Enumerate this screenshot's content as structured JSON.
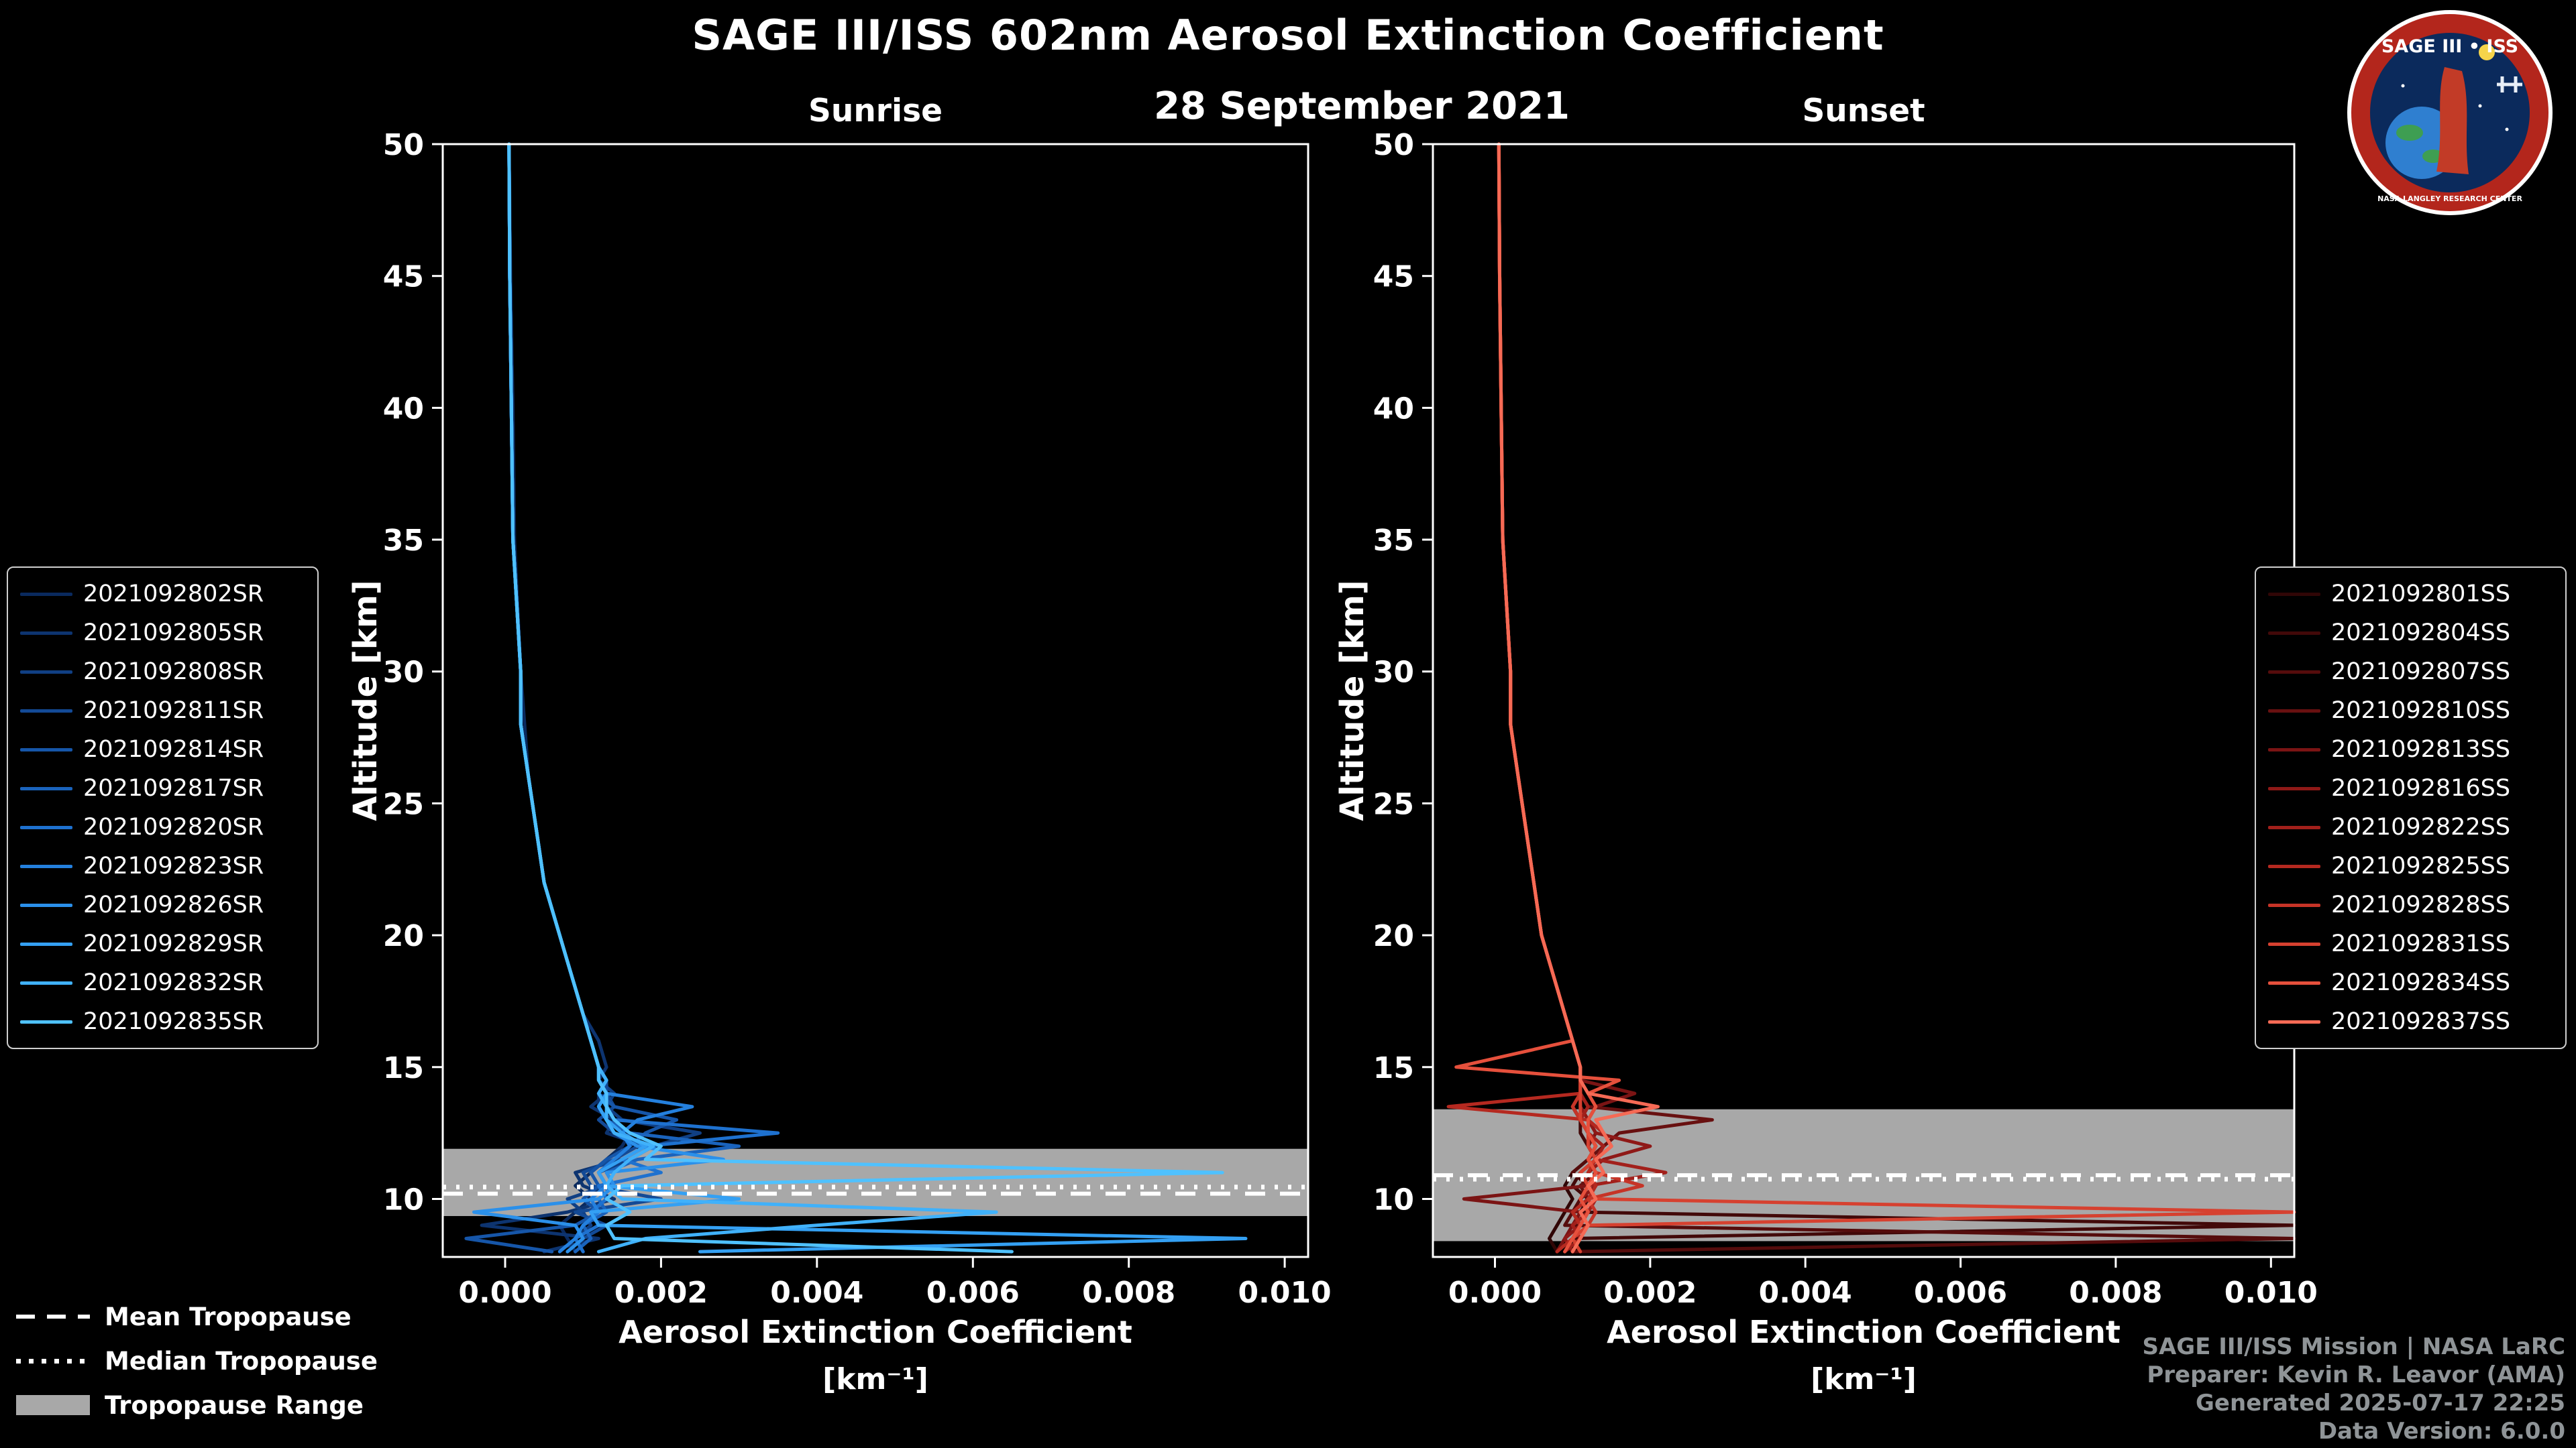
{
  "page": {
    "title": "SAGE III/ISS 602nm Aerosol Extinction Coefficient",
    "date": "28 September 2021",
    "background": "#000000"
  },
  "logo": {
    "title": "SAGE III • ISS",
    "ring_text": "NASA LANGLEY RESEARCH CENTER"
  },
  "tropopause_legend": {
    "mean": "Mean Tropopause",
    "median": "Median Tropopause",
    "range": "Tropopause Range"
  },
  "footer": {
    "lines": [
      "SAGE III/ISS Mission | NASA LaRC",
      "Preparer: Kevin R. Leavor (AMA)",
      "Generated 2025-07-17 22:25",
      "Data Version: 6.0.0"
    ]
  },
  "chart_data": [
    {
      "type": "line",
      "panel_title": "Sunrise",
      "xlabel": "Aerosol Extinction Coefficient",
      "xlabel_units": "[km⁻¹]",
      "ylabel": "Altitude [km]",
      "xlim": [
        -0.0008,
        0.0103
      ],
      "ylim": [
        7.8,
        50
      ],
      "xticks": [
        0.0,
        0.002,
        0.004,
        0.006,
        0.008,
        0.01
      ],
      "xtick_labels": [
        "0.000",
        "0.002",
        "0.004",
        "0.006",
        "0.008",
        "0.010"
      ],
      "yticks": [
        10,
        15,
        20,
        25,
        30,
        35,
        40,
        45,
        50
      ],
      "grid": false,
      "legend_position": "left",
      "tropopause": {
        "mean_km": 10.2,
        "median_km": 10.45,
        "range_km": [
          9.35,
          11.9
        ]
      },
      "altitudes": [
        8,
        8.5,
        9,
        9.5,
        10,
        10.5,
        11,
        11.5,
        12,
        12.5,
        13,
        13.5,
        14,
        14.5,
        15,
        16,
        17,
        18,
        19,
        20,
        22,
        24,
        26,
        28,
        30,
        35,
        40,
        45,
        50
      ],
      "series": [
        {
          "name": "2021092802SR",
          "color": "#0a2a5e",
          "values": [
            0.0009,
            0.0008,
            0.0007,
            0.0009,
            0.0011,
            0.0009,
            0.0011,
            0.0013,
            0.0015,
            0.0016,
            0.0013,
            0.0012,
            0.0012,
            0.0013,
            0.0012,
            0.0011,
            0.001,
            0.0009,
            0.0008,
            0.0007,
            0.0005,
            0.0004,
            0.0003,
            0.00025,
            0.0002,
            0.00012,
            0.0001,
            7e-05,
            5e-05
          ]
        },
        {
          "name": "2021092805SR",
          "color": "#0d3470",
          "values": [
            0.0005,
            0.0012,
            -0.0003,
            0.0008,
            0.0014,
            0.001,
            0.0009,
            0.0015,
            0.0018,
            0.0013,
            0.0014,
            0.0011,
            0.0013,
            0.0012,
            0.0013,
            0.0012,
            0.001,
            0.0009,
            0.0008,
            0.0007,
            0.0005,
            0.0004,
            0.0003,
            0.0002,
            0.0002,
            0.0001,
            8e-05,
            6e-05,
            5e-05
          ]
        },
        {
          "name": "2021092808SR",
          "color": "#103f83",
          "values": [
            0.001,
            0.0009,
            0.0011,
            0.001,
            0.0008,
            0.0013,
            0.0012,
            0.0016,
            0.0019,
            0.0025,
            0.0015,
            0.0013,
            0.0014,
            0.0012,
            0.0012,
            0.0011,
            0.001,
            0.0009,
            0.0008,
            0.0007,
            0.0005,
            0.0004,
            0.0003,
            0.0002,
            0.0002,
            0.0001,
            8e-05,
            6e-05,
            5e-05
          ]
        },
        {
          "name": "2021092811SR",
          "color": "#134a96",
          "values": [
            0.0008,
            0.001,
            0.0013,
            0.0009,
            0.002,
            0.0011,
            0.001,
            0.0014,
            0.0017,
            0.0014,
            0.0012,
            0.0014,
            0.0013,
            0.0013,
            0.0012,
            0.0011,
            0.001,
            0.0009,
            0.0008,
            0.0007,
            0.0005,
            0.0004,
            0.0003,
            0.0002,
            0.0002,
            0.0001,
            8e-05,
            6e-05,
            5e-05
          ]
        },
        {
          "name": "2021092814SR",
          "color": "#1656a9",
          "values": [
            0.0006,
            -0.0005,
            0.0009,
            0.0012,
            0.001,
            0.0012,
            0.0011,
            0.0013,
            0.0016,
            0.0018,
            0.0022,
            0.0014,
            0.0012,
            0.0013,
            0.0012,
            0.0011,
            0.001,
            0.0009,
            0.0008,
            0.0007,
            0.0005,
            0.0004,
            0.0003,
            0.0002,
            0.0002,
            0.0001,
            8e-05,
            6e-05,
            5e-05
          ]
        },
        {
          "name": "2021092817SR",
          "color": "#1a63bc",
          "values": [
            0.0009,
            0.0011,
            0.001,
            0.0013,
            0.0012,
            0.0014,
            0.0013,
            0.0017,
            0.003,
            0.0016,
            0.0013,
            0.0012,
            0.0013,
            0.0012,
            0.0012,
            0.0011,
            0.001,
            0.0009,
            0.0008,
            0.0007,
            0.0005,
            0.0004,
            0.0003,
            0.0002,
            0.0002,
            0.0001,
            8e-05,
            6e-05,
            5e-05
          ]
        },
        {
          "name": "2021092820SR",
          "color": "#1e71cf",
          "values": [
            0.001,
            0.0009,
            0.0012,
            0.0011,
            0.0013,
            0.0012,
            0.002,
            0.0015,
            0.0018,
            0.0035,
            0.0014,
            0.0013,
            0.0012,
            0.0013,
            0.0012,
            0.0011,
            0.001,
            0.0009,
            0.0008,
            0.0007,
            0.0005,
            0.0004,
            0.0003,
            0.0002,
            0.0002,
            0.0001,
            8e-05,
            6e-05,
            5e-05
          ]
        },
        {
          "name": "2021092823SR",
          "color": "#2480de",
          "values": [
            0.0007,
            0.0009,
            0.001,
            0.0012,
            0.0011,
            0.0013,
            0.0012,
            0.0014,
            0.0016,
            0.0015,
            0.0017,
            0.0024,
            0.0013,
            0.0012,
            0.0012,
            0.0011,
            0.001,
            0.0009,
            0.0008,
            0.0007,
            0.0005,
            0.0004,
            0.0003,
            0.0002,
            0.0002,
            0.0001,
            8e-05,
            6e-05,
            5e-05
          ]
        },
        {
          "name": "2021092826SR",
          "color": "#2b90ea",
          "values": [
            0.0008,
            0.001,
            0.0009,
            -0.0004,
            0.0012,
            0.0014,
            0.0013,
            0.0028,
            0.0017,
            0.0014,
            0.0013,
            0.0012,
            0.0013,
            0.0012,
            0.0012,
            0.0011,
            0.001,
            0.0009,
            0.0008,
            0.0007,
            0.0005,
            0.0004,
            0.0003,
            0.0002,
            0.0002,
            0.0001,
            8e-05,
            6e-05,
            5e-05
          ]
        },
        {
          "name": "2021092829SR",
          "color": "#34a0f3",
          "values": [
            0.0025,
            0.0095,
            0.0012,
            0.0011,
            0.003,
            0.0013,
            0.0012,
            0.0015,
            0.0018,
            0.0015,
            0.0013,
            0.0012,
            0.0013,
            0.0012,
            0.0012,
            0.0011,
            0.001,
            0.0009,
            0.0008,
            0.0007,
            0.0005,
            0.0004,
            0.0003,
            0.0002,
            0.0002,
            0.0001,
            8e-05,
            6e-05,
            5e-05
          ]
        },
        {
          "name": "2021092832SR",
          "color": "#40b1fa",
          "values": [
            0.0012,
            0.0018,
            0.004,
            0.0063,
            0.0015,
            0.0013,
            0.0014,
            0.0016,
            0.0019,
            0.0014,
            0.0013,
            0.0013,
            0.0012,
            0.0013,
            0.0012,
            0.0011,
            0.001,
            0.0009,
            0.0008,
            0.0007,
            0.0005,
            0.0004,
            0.0003,
            0.0002,
            0.0002,
            0.0001,
            8e-05,
            6e-05,
            5e-05
          ]
        },
        {
          "name": "2021092835SR",
          "color": "#4fc1ff",
          "values": [
            0.0065,
            0.0014,
            0.0013,
            0.0016,
            0.0013,
            0.0015,
            0.0092,
            0.0018,
            0.002,
            0.0016,
            0.0014,
            0.0013,
            0.0013,
            0.0012,
            0.0012,
            0.0011,
            0.001,
            0.0009,
            0.0008,
            0.0007,
            0.0005,
            0.0004,
            0.0003,
            0.0002,
            0.0002,
            0.0001,
            8e-05,
            6e-05,
            5e-05
          ]
        }
      ]
    },
    {
      "type": "line",
      "panel_title": "Sunset",
      "xlabel": "Aerosol Extinction Coefficient",
      "xlabel_units": "[km⁻¹]",
      "ylabel": "Altitude [km]",
      "xlim": [
        -0.0008,
        0.0103
      ],
      "ylim": [
        7.8,
        50
      ],
      "xticks": [
        0.0,
        0.002,
        0.004,
        0.006,
        0.008,
        0.01
      ],
      "xtick_labels": [
        "0.000",
        "0.002",
        "0.004",
        "0.006",
        "0.008",
        "0.010"
      ],
      "yticks": [
        10,
        15,
        20,
        25,
        30,
        35,
        40,
        45,
        50
      ],
      "grid": false,
      "legend_position": "right",
      "tropopause": {
        "mean_km": 10.9,
        "median_km": 10.75,
        "range_km": [
          8.4,
          13.4
        ]
      },
      "altitudes": [
        8,
        8.5,
        9,
        9.5,
        10,
        10.5,
        11,
        11.5,
        12,
        12.5,
        13,
        13.5,
        14,
        14.5,
        15,
        16,
        17,
        18,
        19,
        20,
        22,
        24,
        26,
        28,
        30,
        35,
        40,
        45,
        50
      ],
      "series": [
        {
          "name": "2021092801SS",
          "color": "#300606",
          "values": [
            0.0008,
            0.0007,
            0.0008,
            0.0009,
            0.001,
            0.0009,
            0.001,
            0.0012,
            0.0013,
            0.0012,
            0.0011,
            0.001,
            0.0011,
            0.0011,
            0.0011,
            0.001,
            0.0009,
            0.0008,
            0.0007,
            0.0006,
            0.0005,
            0.0004,
            0.0003,
            0.0002,
            0.0002,
            0.0001,
            8e-05,
            6e-05,
            5e-05
          ]
        },
        {
          "name": "2021092804SS",
          "color": "#420909",
          "values": [
            0.0009,
            0.001,
            0.012,
            0.0011,
            0.0012,
            0.001,
            0.0011,
            0.0013,
            0.0012,
            0.0011,
            0.0011,
            0.001,
            0.0011,
            0.0011,
            0.0011,
            0.001,
            0.0009,
            0.0008,
            0.0007,
            0.0006,
            0.0005,
            0.0004,
            0.0003,
            0.0002,
            0.0002,
            0.0001,
            8e-05,
            6e-05,
            5e-05
          ]
        },
        {
          "name": "2021092807SS",
          "color": "#550c0c",
          "values": [
            0.001,
            0.013,
            0.0009,
            0.001,
            0.0011,
            0.0012,
            0.001,
            0.0012,
            0.0013,
            0.0012,
            0.0011,
            0.001,
            0.0011,
            0.0011,
            0.0011,
            0.001,
            0.0009,
            0.0008,
            0.0007,
            0.0006,
            0.0005,
            0.0004,
            0.0003,
            0.0002,
            0.0002,
            0.0001,
            8e-05,
            6e-05,
            5e-05
          ]
        },
        {
          "name": "2021092810SS",
          "color": "#681010",
          "values": [
            0.0009,
            0.001,
            0.0011,
            0.001,
            0.0012,
            0.0011,
            0.0013,
            0.0012,
            0.0014,
            0.0016,
            0.0028,
            0.0012,
            0.0011,
            0.0011,
            0.0011,
            0.001,
            0.0009,
            0.0008,
            0.0007,
            0.0006,
            0.0005,
            0.0004,
            0.0003,
            0.0002,
            0.0002,
            0.0001,
            8e-05,
            6e-05,
            5e-05
          ]
        },
        {
          "name": "2021092813SS",
          "color": "#7b1414",
          "values": [
            0.0008,
            0.0009,
            0.001,
            0.0011,
            -0.0004,
            0.0012,
            0.0011,
            0.0013,
            0.0012,
            0.0013,
            0.0012,
            0.0013,
            0.0018,
            0.0011,
            0.0011,
            0.001,
            0.0009,
            0.0008,
            0.0007,
            0.0006,
            0.0005,
            0.0004,
            0.0003,
            0.0002,
            0.0002,
            0.0001,
            8e-05,
            6e-05,
            5e-05
          ]
        },
        {
          "name": "2021092816SS",
          "color": "#8f1917",
          "values": [
            0.001,
            0.0009,
            0.0011,
            0.0012,
            0.0011,
            0.0013,
            0.0012,
            0.0014,
            0.002,
            0.0013,
            0.0012,
            0.0011,
            0.0011,
            0.0011,
            0.0011,
            0.001,
            0.0009,
            0.0008,
            0.0007,
            0.0006,
            0.0005,
            0.0004,
            0.0003,
            0.0002,
            0.0002,
            0.0001,
            8e-05,
            6e-05,
            5e-05
          ]
        },
        {
          "name": "2021092822SS",
          "color": "#a2201b",
          "values": [
            0.0009,
            0.0011,
            0.001,
            0.0012,
            0.0013,
            0.0012,
            0.0022,
            0.0013,
            0.0014,
            0.0012,
            0.0011,
            0.0012,
            0.0011,
            0.0011,
            0.0011,
            0.001,
            0.0009,
            0.0008,
            0.0007,
            0.0006,
            0.0005,
            0.0004,
            0.0003,
            0.0002,
            0.0002,
            0.0001,
            8e-05,
            6e-05,
            5e-05
          ]
        },
        {
          "name": "2021092825SS",
          "color": "#b52920",
          "values": [
            0.0008,
            0.001,
            0.0011,
            0.001,
            0.0012,
            0.0013,
            0.0012,
            0.0013,
            0.0015,
            0.0014,
            0.0012,
            -0.0006,
            0.0011,
            0.0011,
            0.0011,
            0.001,
            0.0009,
            0.0008,
            0.0007,
            0.0006,
            0.0005,
            0.0004,
            0.0003,
            0.0002,
            0.0002,
            0.0001,
            8e-05,
            6e-05,
            5e-05
          ]
        },
        {
          "name": "2021092828SS",
          "color": "#c63427",
          "values": [
            0.001,
            0.0011,
            0.0012,
            0.0013,
            0.0012,
            0.0019,
            0.0013,
            0.0012,
            0.0013,
            0.0012,
            0.0011,
            0.001,
            0.0011,
            0.0011,
            0.0011,
            0.001,
            0.0009,
            0.0008,
            0.0007,
            0.0006,
            0.0005,
            0.0004,
            0.0003,
            0.0002,
            0.0002,
            0.0001,
            8e-05,
            6e-05,
            5e-05
          ]
        },
        {
          "name": "2021092831SS",
          "color": "#d64130",
          "values": [
            0.0011,
            0.001,
            0.0012,
            0.011,
            0.0013,
            0.0012,
            0.0011,
            0.0013,
            0.0012,
            0.0012,
            0.0011,
            0.0011,
            0.0011,
            0.0011,
            0.0011,
            0.001,
            0.0009,
            0.0008,
            0.0007,
            0.0006,
            0.0005,
            0.0004,
            0.0003,
            0.0002,
            0.0002,
            0.0001,
            8e-05,
            6e-05,
            5e-05
          ]
        },
        {
          "name": "2021092834SS",
          "color": "#e6503c",
          "values": [
            0.0009,
            0.001,
            0.0011,
            0.0012,
            0.0011,
            0.0012,
            0.0013,
            0.0012,
            0.0013,
            0.0012,
            0.0012,
            0.0013,
            0.0012,
            0.0016,
            -0.0005,
            0.001,
            0.0009,
            0.0008,
            0.0007,
            0.0006,
            0.0005,
            0.0004,
            0.0003,
            0.0002,
            0.0002,
            0.0001,
            8e-05,
            6e-05,
            5e-05
          ]
        },
        {
          "name": "2021092837SS",
          "color": "#f66a55",
          "values": [
            0.001,
            0.0011,
            0.0012,
            0.0011,
            0.0013,
            0.0012,
            0.0014,
            0.0013,
            0.0015,
            0.0014,
            0.0013,
            0.0021,
            0.0012,
            0.0011,
            0.0011,
            0.001,
            0.0009,
            0.0008,
            0.0007,
            0.0006,
            0.0005,
            0.0004,
            0.0003,
            0.0002,
            0.0002,
            0.0001,
            8e-05,
            6e-05,
            5e-05
          ]
        }
      ]
    }
  ]
}
